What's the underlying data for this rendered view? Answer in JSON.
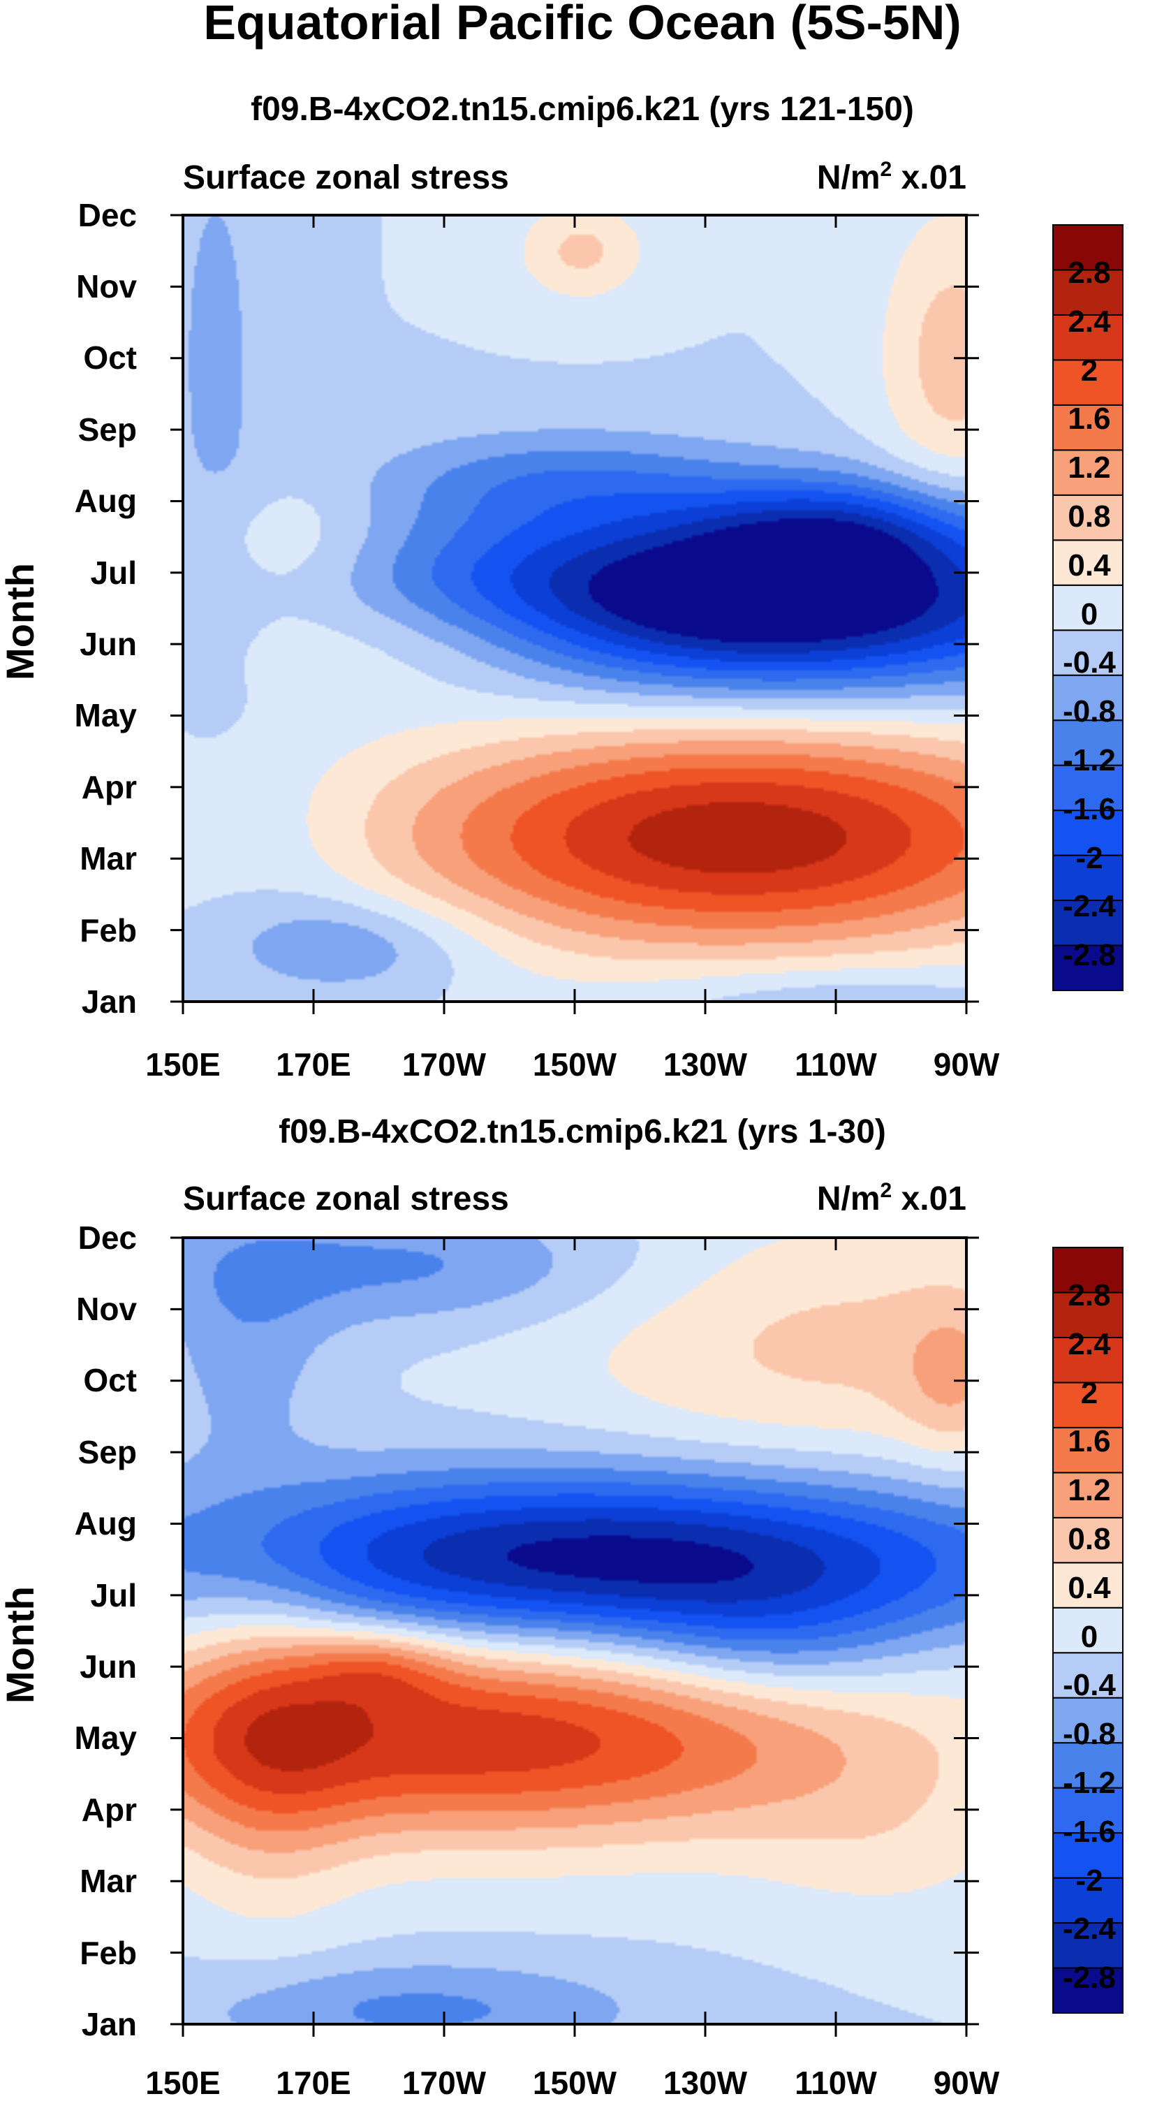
{
  "figure_title": "Equatorial Pacific Ocean (5S-5N)",
  "colors": {
    "levels": [
      -3.2,
      -2.8,
      -2.4,
      -2.0,
      -1.6,
      -1.2,
      -0.8,
      -0.4,
      0.0,
      0.4,
      0.8,
      1.2,
      1.6,
      2.0,
      2.4,
      2.8,
      3.2
    ],
    "palette": [
      "#0a0a8c",
      "#0b2eb0",
      "#0c3fd6",
      "#1452f2",
      "#2d6af0",
      "#4a82ec",
      "#7fa6f0",
      "#b5cdf6",
      "#dbe9fb",
      "#fde8d6",
      "#fbc7ac",
      "#f7a07a",
      "#f47a4c",
      "#ee5426",
      "#d8381a",
      "#b3240f",
      "#8a0707"
    ]
  },
  "colorbar": {
    "labels": [
      "2.8",
      "2.4",
      "2",
      "1.6",
      "1.2",
      "0.8",
      "0.4",
      "0",
      "-0.4",
      "-0.8",
      "-1.2",
      "-1.6",
      "-2",
      "-2.4",
      "-2.8"
    ]
  },
  "chart_data": [
    {
      "type": "heatmap",
      "title": "f09.B-4xCO2.tn15.cmip6.k21 (yrs 121-150)",
      "left_label": "Surface zonal stress",
      "right_label_base": "N/m",
      "right_label_sup": "2",
      "right_label_suffix": " x.01",
      "ylabel": "Month",
      "xlabel": "",
      "x_ticks": [
        "150E",
        "170E",
        "170W",
        "150W",
        "130W",
        "110W",
        "90W"
      ],
      "y_ticks": [
        "Jan",
        "Feb",
        "Mar",
        "Apr",
        "May",
        "Jun",
        "Jul",
        "Aug",
        "Sep",
        "Oct",
        "Nov",
        "Dec"
      ],
      "xlim": [
        150,
        270
      ],
      "ylim": [
        1,
        12
      ],
      "blobs": [
        {
          "x": 235,
          "y": 6.6,
          "sx": 30,
          "sy": 0.7,
          "amp": -3.9,
          "rot": 1.4
        },
        {
          "x": 250,
          "y": 7.6,
          "sx": 15,
          "sy": 0.5,
          "amp": -1.3
        },
        {
          "x": 208,
          "y": 8.3,
          "sx": 20,
          "sy": 0.5,
          "amp": -0.9
        },
        {
          "x": 235,
          "y": 3.3,
          "sx": 30,
          "sy": 0.9,
          "amp": 3.1,
          "rot": 1.4
        },
        {
          "x": 190,
          "y": 6.1,
          "sx": 25,
          "sy": 0.6,
          "amp": 1.0
        },
        {
          "x": 165,
          "y": 7.4,
          "sx": 12,
          "sy": 0.6,
          "amp": 0.6
        },
        {
          "x": 211,
          "y": 11.5,
          "sx": 7,
          "sy": 0.5,
          "amp": 0.9
        },
        {
          "x": 268,
          "y": 10.0,
          "sx": 8,
          "sy": 1.5,
          "amp": 1.0
        },
        {
          "x": 176,
          "y": 1.8,
          "sx": 14,
          "sy": 0.5,
          "amp": -0.9
        },
        {
          "x": 250,
          "y": 1.0,
          "sx": 20,
          "sy": 0.4,
          "amp": -0.6
        },
        {
          "x": 168,
          "y": 3.1,
          "sx": 10,
          "sy": 0.9,
          "amp": -0.25
        },
        {
          "x": 155,
          "y": 10.0,
          "sx": 6,
          "sy": 3,
          "amp": -0.5
        }
      ]
    },
    {
      "type": "heatmap",
      "title": "f09.B-4xCO2.tn15.cmip6.k21 (yrs 1-30)",
      "left_label": "Surface zonal stress",
      "right_label_base": "N/m",
      "right_label_sup": "2",
      "right_label_suffix": " x.01",
      "ylabel": "Month",
      "xlabel": "",
      "x_ticks": [
        "150E",
        "170E",
        "170W",
        "150W",
        "130W",
        "110W",
        "90W"
      ],
      "y_ticks": [
        "Jan",
        "Feb",
        "Mar",
        "Apr",
        "May",
        "Jun",
        "Jul",
        "Aug",
        "Sep",
        "Oct",
        "Nov",
        "Dec"
      ],
      "xlim": [
        150,
        270
      ],
      "ylim": [
        1,
        12
      ],
      "blobs": [
        {
          "x": 215,
          "y": 7.5,
          "sx": 40,
          "sy": 0.75,
          "amp": -3.1,
          "rot": 1.0
        },
        {
          "x": 240,
          "y": 6.3,
          "sx": 16,
          "sy": 0.7,
          "amp": -0.8
        },
        {
          "x": 195,
          "y": 5.0,
          "sx": 40,
          "sy": 0.9,
          "amp": 2.7,
          "rot": 1.0
        },
        {
          "x": 180,
          "y": 6.0,
          "sx": 8,
          "sy": 0.4,
          "amp": 0.9
        },
        {
          "x": 163,
          "y": 5.0,
          "sx": 10,
          "sy": 1.8,
          "amp": 0.9
        },
        {
          "x": 250,
          "y": 10.5,
          "sx": 30,
          "sy": 1.3,
          "amp": 0.9
        },
        {
          "x": 268,
          "y": 10.0,
          "sx": 6,
          "sy": 0.8,
          "amp": 0.7
        },
        {
          "x": 185,
          "y": 11.6,
          "sx": 25,
          "sy": 0.6,
          "amp": -0.9
        },
        {
          "x": 160,
          "y": 10.5,
          "sx": 9,
          "sy": 1.3,
          "amp": -0.6
        },
        {
          "x": 185,
          "y": 1.2,
          "sx": 25,
          "sy": 0.5,
          "amp": -0.9
        },
        {
          "x": 258,
          "y": 3.4,
          "sx": 15,
          "sy": 0.8,
          "amp": 0.4
        }
      ]
    }
  ]
}
